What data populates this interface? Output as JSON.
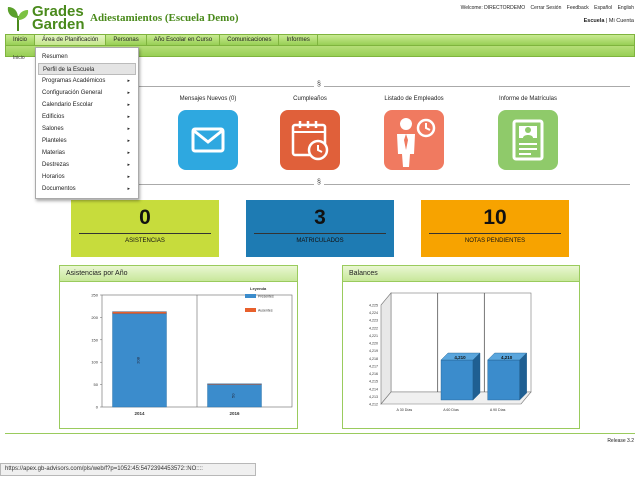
{
  "app": {
    "logo_line1": "Grades",
    "logo_line2": "Garden",
    "title": "Adiestamientos (Escuela Demo)"
  },
  "toplinks": [
    "Welcome: DIRECTORDEMO",
    "Cerrar Sesión",
    "Feedback",
    "Español",
    "English"
  ],
  "sublinks": {
    "current": "Escuela",
    "separator": " | ",
    "account": "Mi Cuenta"
  },
  "nav": {
    "items": [
      "Inicio",
      "Área de Planificación",
      "Personas",
      "Año Escolar en Curso",
      "Comunicaciones",
      "Informes"
    ],
    "active_index": 1
  },
  "subnav": {
    "items": [
      "Inicio"
    ]
  },
  "dropdown": {
    "items": [
      {
        "label": "Resumen",
        "submenu": false
      },
      {
        "label": "Perfil de la Escuela",
        "submenu": false,
        "highlighted": true
      },
      {
        "label": "Programas Académicos",
        "submenu": true
      },
      {
        "label": "Configuración General",
        "submenu": true
      },
      {
        "label": "Calendario Escolar",
        "submenu": true
      },
      {
        "label": "Edificios",
        "submenu": true
      },
      {
        "label": "Salones",
        "submenu": true
      },
      {
        "label": "Planteles",
        "submenu": true
      },
      {
        "label": "Materias",
        "submenu": true
      },
      {
        "label": "Destrezas",
        "submenu": true
      },
      {
        "label": "Horarios",
        "submenu": true
      },
      {
        "label": "Documentos",
        "submenu": true
      }
    ],
    "arrow": "▸"
  },
  "divider_symbol": "§",
  "tiles": [
    {
      "label": "Mensajes Nuevos (0)",
      "icon": "envelope-icon",
      "color": "#2ea8e0"
    },
    {
      "label": "Cumpleaños",
      "icon": "calendar-clock-icon",
      "color": "#e0603a"
    },
    {
      "label": "Listado de Empleados",
      "icon": "employee-icon",
      "color": "#f07a60"
    },
    {
      "label": "Informe de Matrículas",
      "icon": "document-icon",
      "color": "#8fca6a"
    }
  ],
  "stats": [
    {
      "value": "0",
      "label": "ASISTENCIAS",
      "color": "#c7dc3c"
    },
    {
      "value": "3",
      "label": "MATRICULADOS",
      "color": "#1e7bb3"
    },
    {
      "value": "10",
      "label": "NOTAS PENDIENTES",
      "color": "#f7a300"
    }
  ],
  "panels": {
    "attendance_title": "Asistencias por Año",
    "balances_title": "Balances"
  },
  "chart_data": [
    {
      "type": "bar",
      "title": "",
      "categories": [
        "2014",
        "2016"
      ],
      "series": [
        {
          "name": "Presentes",
          "values": [
            208,
            50
          ],
          "color": "#3b8ccc"
        },
        {
          "name": "Ausentes",
          "values": [
            5,
            2
          ],
          "color": "#e8602c"
        }
      ],
      "data_labels": [
        "208",
        "50"
      ],
      "legend_title": "Leyenda",
      "legend_position": "top-right",
      "ylim": [
        0,
        250
      ],
      "yticks": [
        0,
        50,
        100,
        150,
        200,
        250
      ]
    },
    {
      "type": "bar",
      "title": "",
      "categories": [
        "A 30 Días",
        "A 60 Días",
        "A 90 Días"
      ],
      "values": [
        0,
        4210,
        4210
      ],
      "data_labels": [
        "",
        "4,210",
        "4,210"
      ],
      "color": "#3b8ccc",
      "ytick_labels": [
        "4,225",
        "4,224",
        "4,223",
        "4,222",
        "4,221",
        "4,220",
        "4,219",
        "4,218",
        "4,217",
        "4,216",
        "4,215",
        "4,214",
        "4,213",
        "4,212"
      ]
    }
  ],
  "release": "Release 3.2",
  "status_url": "https://apex.gb-advisors.com/pls/web/f?p=1052:45:5472394453572::NO::::"
}
